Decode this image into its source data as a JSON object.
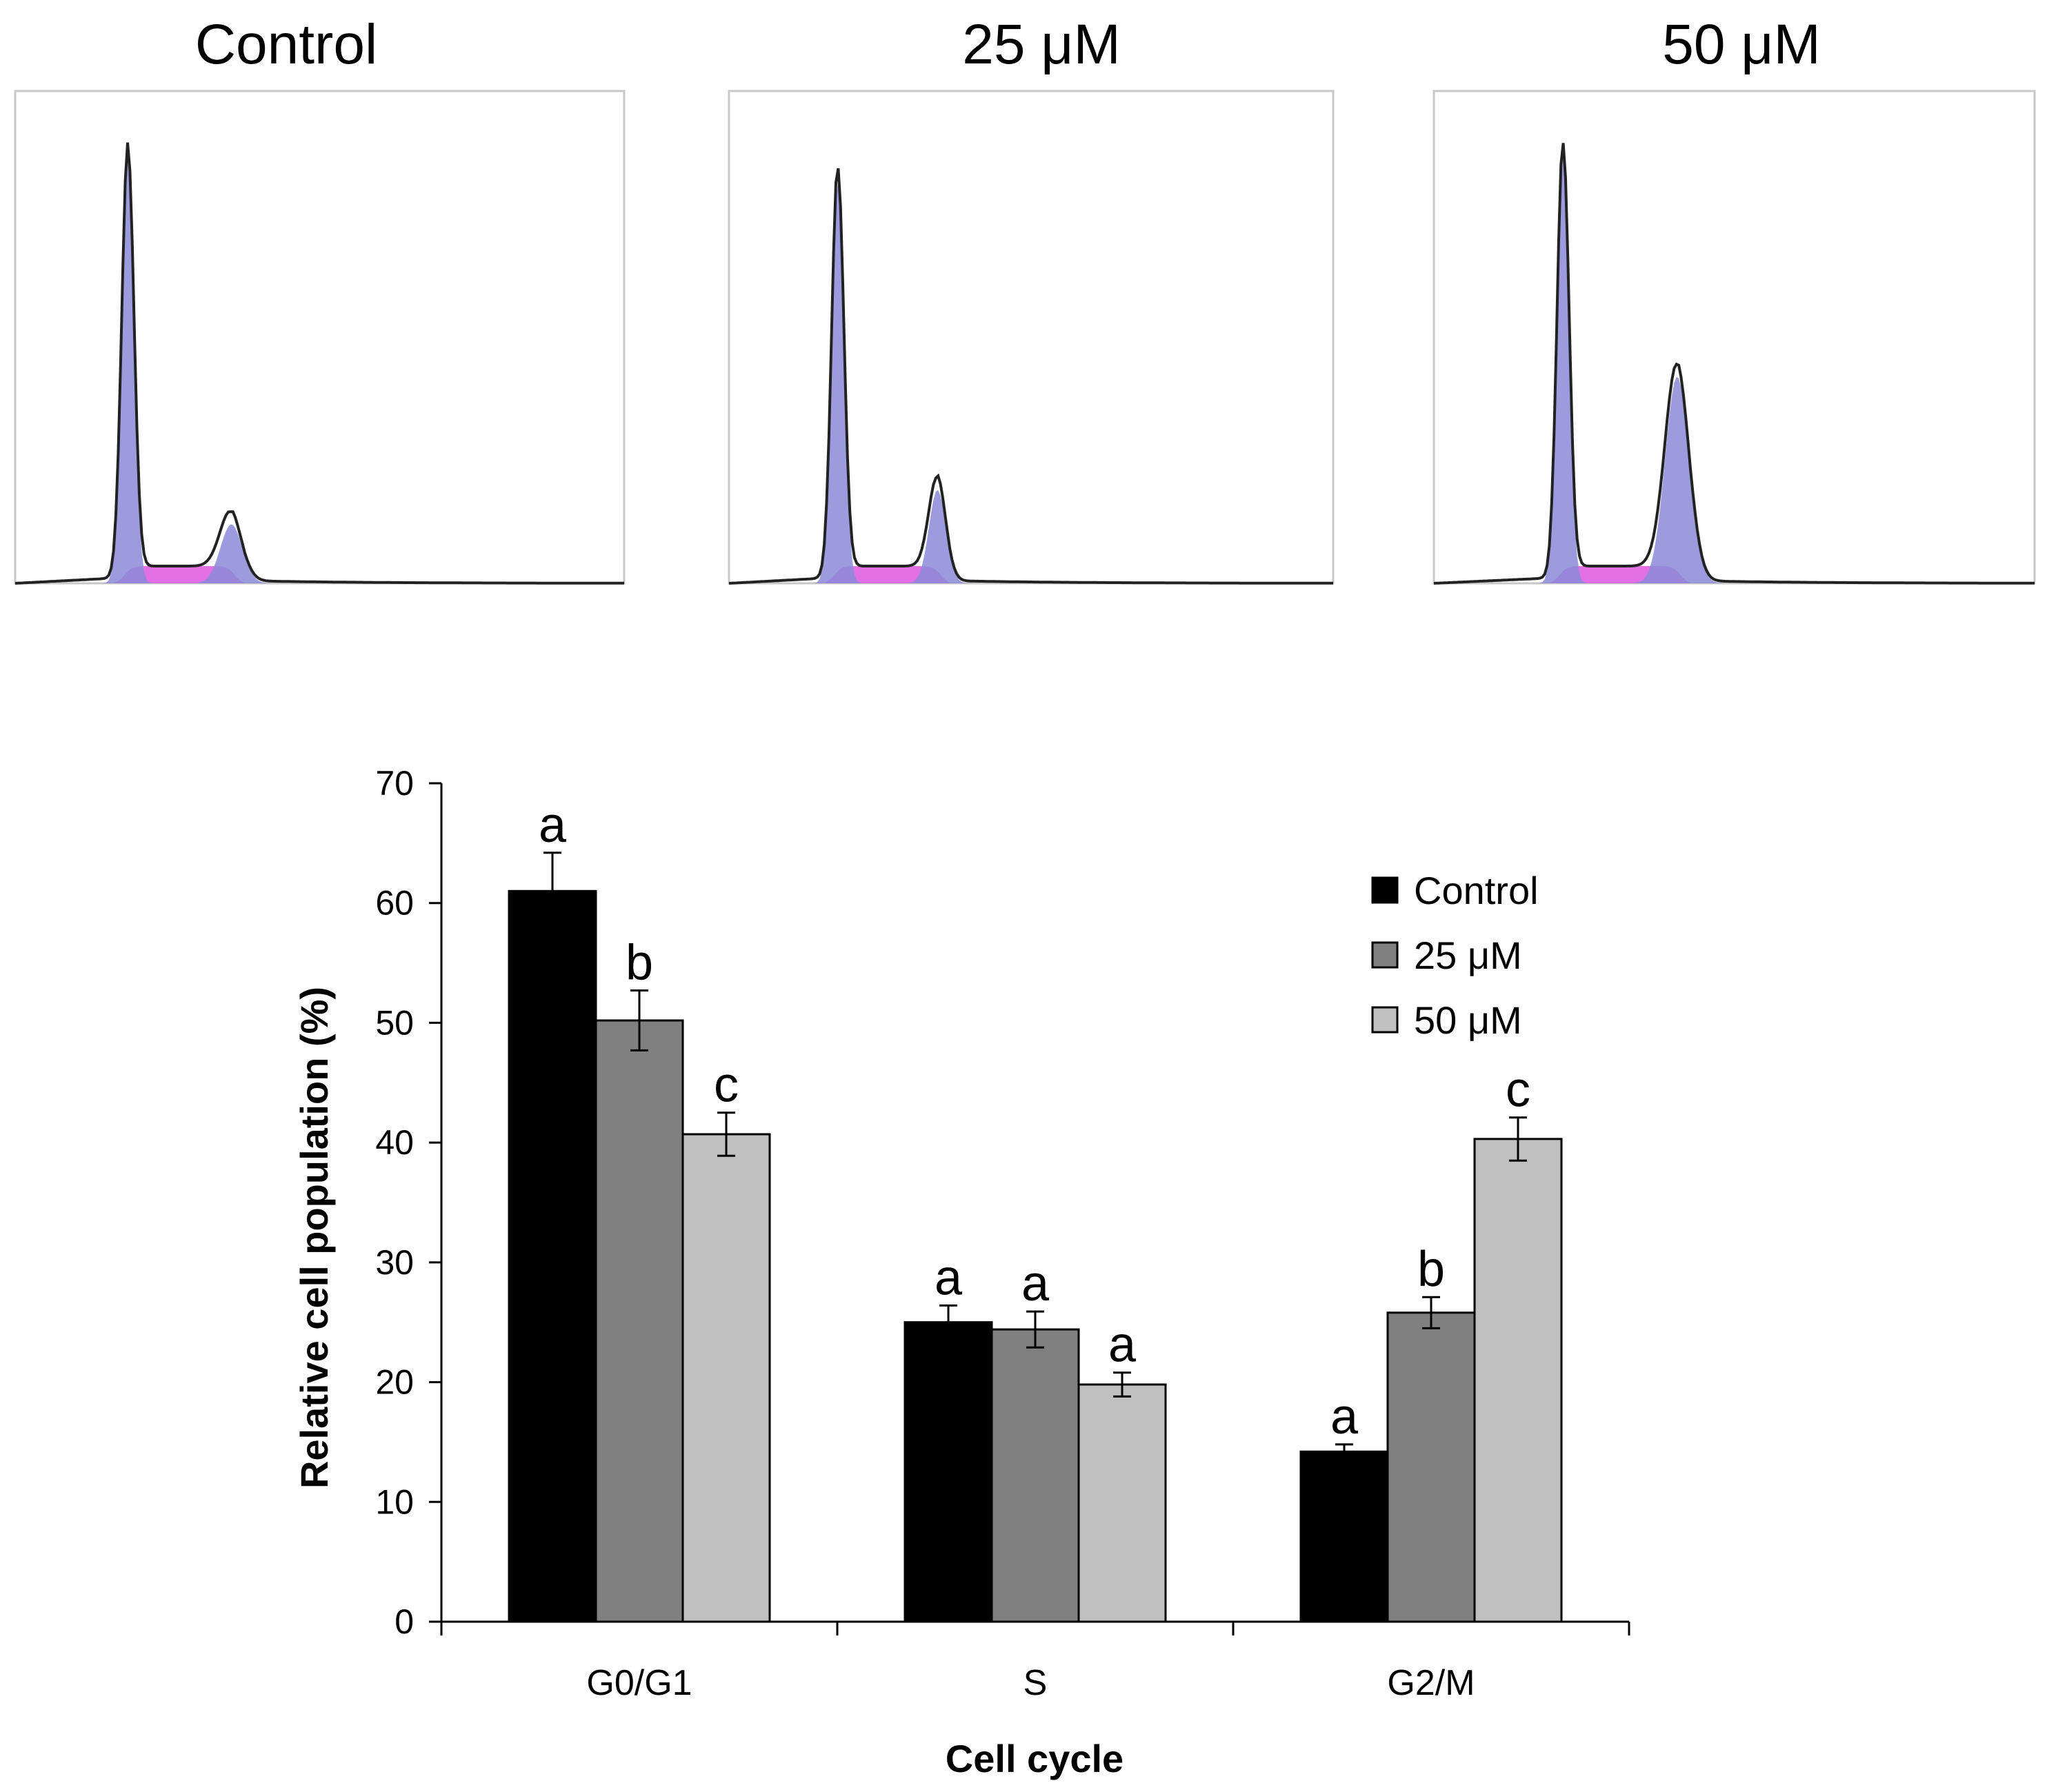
{
  "histograms": [
    {
      "title": "Control"
    },
    {
      "title": "25  μM"
    },
    {
      "title": "50  μM"
    }
  ],
  "chart_data": {
    "type": "bar",
    "xlabel": "Cell cycle",
    "ylabel": "Relative cell population (%)",
    "categories": [
      "G0/G1",
      "S",
      "G2/M"
    ],
    "ylim": [
      0,
      70
    ],
    "yticks": [
      0,
      10,
      20,
      30,
      40,
      50,
      60,
      70
    ],
    "legend_position": "top-right",
    "series": [
      {
        "name": "Control",
        "color": "#000000",
        "values": [
          61,
          25,
          14.2
        ],
        "errors": [
          3.2,
          1.4,
          0.6
        ],
        "labels": [
          "a",
          "a",
          "a"
        ]
      },
      {
        "name": "25  μM",
        "color": "#808080",
        "values": [
          50.2,
          24.4,
          25.8
        ],
        "errors": [
          2.5,
          1.5,
          1.3
        ],
        "labels": [
          "b",
          "a",
          "b"
        ]
      },
      {
        "name": "50  μM",
        "color": "#c0c0c0",
        "values": [
          40.7,
          19.8,
          40.3
        ],
        "errors": [
          1.8,
          1.0,
          1.8
        ],
        "labels": [
          "c",
          "a",
          "c"
        ]
      }
    ]
  }
}
